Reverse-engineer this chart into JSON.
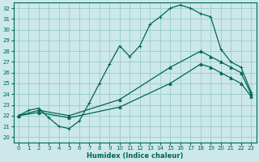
{
  "xlabel": "Humidex (Indice chaleur)",
  "xlim": [
    -0.5,
    23.5
  ],
  "ylim": [
    19.5,
    32.5
  ],
  "xticks": [
    0,
    1,
    2,
    3,
    4,
    5,
    6,
    7,
    8,
    9,
    10,
    11,
    12,
    13,
    14,
    15,
    16,
    17,
    18,
    19,
    20,
    21,
    22,
    23
  ],
  "yticks": [
    20,
    21,
    22,
    23,
    24,
    25,
    26,
    27,
    28,
    29,
    30,
    31,
    32
  ],
  "bg_color": "#cce8e8",
  "grid_color": "#99cccc",
  "line_color": "#006655",
  "line1_x": [
    0,
    1,
    2,
    3,
    4,
    5,
    6,
    7,
    8,
    9,
    10,
    11,
    12,
    13,
    14,
    15,
    16,
    17,
    18,
    19,
    20,
    21,
    22,
    23
  ],
  "line1_y": [
    22,
    22.5,
    22.7,
    21.8,
    21.0,
    20.8,
    21.5,
    23.2,
    25.0,
    26.8,
    28.5,
    27.5,
    28.5,
    30.5,
    31.2,
    32.0,
    32.3,
    32.0,
    31.5,
    31.2,
    28.2,
    27.0,
    26.5,
    24.2
  ],
  "line2_x": [
    0,
    2,
    5,
    10,
    15,
    18,
    19,
    20,
    21,
    22,
    23
  ],
  "line2_y": [
    22,
    22.5,
    22.0,
    23.5,
    26.5,
    28.0,
    27.5,
    27.0,
    26.5,
    26.0,
    24.0
  ],
  "line3_x": [
    0,
    2,
    5,
    10,
    15,
    18,
    19,
    20,
    21,
    22,
    23
  ],
  "line3_y": [
    22,
    22.3,
    21.8,
    22.8,
    25.0,
    26.8,
    26.5,
    26.0,
    25.5,
    25.0,
    23.8
  ]
}
